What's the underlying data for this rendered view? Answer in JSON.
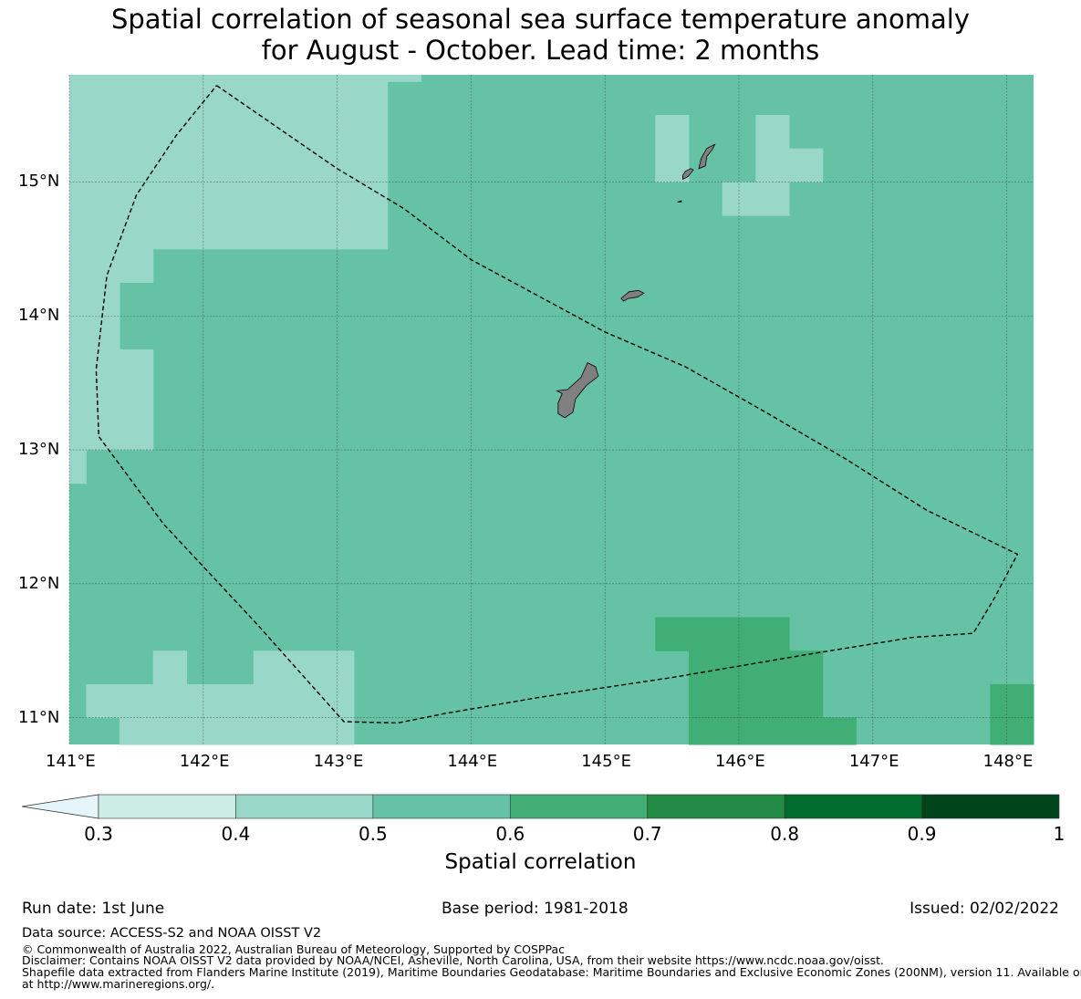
{
  "title": {
    "line1": "Spatial correlation of seasonal sea surface temperature anomaly",
    "line2": "for August - October. Lead time: 2 months"
  },
  "map": {
    "lon_range": [
      141.0,
      148.2
    ],
    "lat_range": [
      10.8,
      15.8
    ],
    "lon_ticks": [
      {
        "value": 141,
        "label": "141°E"
      },
      {
        "value": 142,
        "label": "142°E"
      },
      {
        "value": 143,
        "label": "143°E"
      },
      {
        "value": 144,
        "label": "144°E"
      },
      {
        "value": 145,
        "label": "145°E"
      },
      {
        "value": 146,
        "label": "146°E"
      },
      {
        "value": 147,
        "label": "147°E"
      },
      {
        "value": 148,
        "label": "148°E"
      }
    ],
    "lat_ticks": [
      {
        "value": 15,
        "label": "15°N"
      },
      {
        "value": 14,
        "label": "14°N"
      },
      {
        "value": 13,
        "label": "13°N"
      },
      {
        "value": 12,
        "label": "12°N"
      },
      {
        "value": 11,
        "label": "11°N"
      }
    ],
    "grid": true,
    "background_value": 0.55,
    "cells": [
      {
        "lon0": 141.0,
        "lon1": 143.375,
        "lat0": 14.5,
        "lat1": 15.8,
        "value": 0.45
      },
      {
        "lon0": 143.375,
        "lon1": 143.625,
        "lat0": 15.75,
        "lat1": 15.8,
        "value": 0.45
      },
      {
        "lon0": 141.0,
        "lon1": 141.625,
        "lat0": 14.25,
        "lat1": 14.5,
        "value": 0.45
      },
      {
        "lon0": 141.0,
        "lon1": 141.375,
        "lat0": 13.75,
        "lat1": 14.25,
        "value": 0.45
      },
      {
        "lon0": 141.0,
        "lon1": 141.625,
        "lat0": 13.0,
        "lat1": 13.75,
        "value": 0.45
      },
      {
        "lon0": 141.0,
        "lon1": 141.125,
        "lat0": 12.75,
        "lat1": 13.0,
        "value": 0.45
      },
      {
        "lon0": 145.375,
        "lon1": 145.625,
        "lat0": 15.0,
        "lat1": 15.5,
        "value": 0.45
      },
      {
        "lon0": 146.125,
        "lon1": 146.375,
        "lat0": 15.0,
        "lat1": 15.5,
        "value": 0.45
      },
      {
        "lon0": 146.375,
        "lon1": 146.625,
        "lat0": 15.0,
        "lat1": 15.25,
        "value": 0.45
      },
      {
        "lon0": 145.875,
        "lon1": 146.375,
        "lat0": 14.75,
        "lat1": 15.0,
        "value": 0.45
      },
      {
        "lon0": 141.125,
        "lon1": 141.625,
        "lat0": 11.0,
        "lat1": 11.25,
        "value": 0.45
      },
      {
        "lon0": 141.625,
        "lon1": 141.875,
        "lat0": 11.0,
        "lat1": 11.5,
        "value": 0.45
      },
      {
        "lon0": 141.875,
        "lon1": 142.375,
        "lat0": 11.0,
        "lat1": 11.25,
        "value": 0.45
      },
      {
        "lon0": 142.375,
        "lon1": 143.125,
        "lat0": 11.0,
        "lat1": 11.5,
        "value": 0.45
      },
      {
        "lon0": 141.375,
        "lon1": 143.125,
        "lat0": 10.8,
        "lat1": 11.0,
        "value": 0.45
      },
      {
        "lon0": 145.375,
        "lon1": 146.375,
        "lat0": 11.5,
        "lat1": 11.75,
        "value": 0.65
      },
      {
        "lon0": 145.625,
        "lon1": 146.625,
        "lat0": 11.0,
        "lat1": 11.5,
        "value": 0.65
      },
      {
        "lon0": 145.625,
        "lon1": 146.875,
        "lat0": 10.8,
        "lat1": 11.0,
        "value": 0.65
      },
      {
        "lon0": 147.875,
        "lon1": 148.2,
        "lat0": 10.8,
        "lat1": 11.25,
        "value": 0.65
      }
    ],
    "eez_boundary": [
      [
        142.1,
        15.72
      ],
      [
        143.0,
        15.1
      ],
      [
        143.5,
        14.8
      ],
      [
        144.0,
        14.42
      ],
      [
        144.5,
        14.15
      ],
      [
        145.0,
        13.88
      ],
      [
        145.6,
        13.62
      ],
      [
        146.2,
        13.28
      ],
      [
        146.8,
        12.93
      ],
      [
        147.4,
        12.55
      ],
      [
        148.08,
        12.22
      ],
      [
        147.9,
        11.88
      ],
      [
        147.75,
        11.63
      ],
      [
        147.3,
        11.6
      ],
      [
        146.5,
        11.47
      ],
      [
        145.5,
        11.3
      ],
      [
        144.5,
        11.15
      ],
      [
        143.8,
        11.03
      ],
      [
        143.45,
        10.96
      ],
      [
        143.05,
        10.97
      ],
      [
        142.4,
        11.7
      ],
      [
        141.7,
        12.45
      ],
      [
        141.22,
        13.1
      ],
      [
        141.2,
        13.6
      ],
      [
        141.28,
        14.3
      ],
      [
        141.5,
        14.9
      ],
      [
        141.8,
        15.35
      ],
      [
        142.1,
        15.72
      ]
    ],
    "islands": [
      {
        "name": "Guam",
        "points": [
          [
            144.64,
            13.44
          ],
          [
            144.72,
            13.45
          ],
          [
            144.82,
            13.54
          ],
          [
            144.87,
            13.65
          ],
          [
            144.93,
            13.62
          ],
          [
            144.95,
            13.55
          ],
          [
            144.86,
            13.48
          ],
          [
            144.78,
            13.38
          ],
          [
            144.76,
            13.28
          ],
          [
            144.7,
            13.24
          ],
          [
            144.65,
            13.27
          ],
          [
            144.65,
            13.35
          ],
          [
            144.68,
            13.42
          ],
          [
            144.64,
            13.44
          ]
        ]
      },
      {
        "name": "Rota",
        "points": [
          [
            145.12,
            14.13
          ],
          [
            145.18,
            14.18
          ],
          [
            145.25,
            14.19
          ],
          [
            145.29,
            14.17
          ],
          [
            145.24,
            14.14
          ],
          [
            145.17,
            14.13
          ],
          [
            145.14,
            14.11
          ],
          [
            145.12,
            14.13
          ]
        ]
      },
      {
        "name": "Tinian",
        "points": [
          [
            145.58,
            15.02
          ],
          [
            145.62,
            15.04
          ],
          [
            145.66,
            15.09
          ],
          [
            145.64,
            15.1
          ],
          [
            145.6,
            15.08
          ],
          [
            145.58,
            15.05
          ],
          [
            145.58,
            15.02
          ]
        ]
      },
      {
        "name": "Saipan",
        "points": [
          [
            145.7,
            15.1
          ],
          [
            145.72,
            15.18
          ],
          [
            145.76,
            15.25
          ],
          [
            145.82,
            15.28
          ],
          [
            145.8,
            15.24
          ],
          [
            145.76,
            15.19
          ],
          [
            145.75,
            15.12
          ],
          [
            145.7,
            15.1
          ]
        ]
      },
      {
        "name": "Aguijan",
        "points": [
          [
            145.54,
            14.85
          ],
          [
            145.57,
            14.86
          ],
          [
            145.57,
            14.85
          ],
          [
            145.54,
            14.85
          ]
        ]
      }
    ]
  },
  "colorbar": {
    "label": "Spatial correlation",
    "bins": [
      {
        "from": 0.3,
        "to": 0.4,
        "color": "#ccece6"
      },
      {
        "from": 0.4,
        "to": 0.5,
        "color": "#99d8c9"
      },
      {
        "from": 0.5,
        "to": 0.6,
        "color": "#66c2a4"
      },
      {
        "from": 0.6,
        "to": 0.7,
        "color": "#41ae76"
      },
      {
        "from": 0.7,
        "to": 0.8,
        "color": "#238b45"
      },
      {
        "from": 0.8,
        "to": 0.9,
        "color": "#006d2c"
      },
      {
        "from": 0.9,
        "to": 1.0,
        "color": "#00441b"
      }
    ],
    "extend_color": "#e5f5f9",
    "ticks": [
      "0.3",
      "0.4",
      "0.5",
      "0.6",
      "0.7",
      "0.8",
      "0.9",
      "1"
    ]
  },
  "info": {
    "run_date": "Run date: 1st June",
    "base_period": "Base period: 1981-2018",
    "issued": "Issued: 02/02/2022",
    "data_source": "Data source: ACCESS-S2 and NOAA OISST V2",
    "copyright": "© Commonwealth of Australia 2022, Australian Bureau of Meteorology, Supported by COSPPac",
    "disclaimer": "Disclaimer: Contains NOAA OISST V2 data provided by NOAA/NCEI, Asheville, North Carolina, USA, from their website https://www.ncdc.noaa.gov/oisst.",
    "shapefile_1": "Shapefile data extracted from Flanders Marine Institute (2019), Maritime Boundaries Geodatabase: Maritime Boundaries and Exclusive Economic Zones (200NM), version 11. Available online",
    "shapefile_2": "at http://www.marineregions.org/."
  },
  "colors": {
    "land": "#808080",
    "grid": "#2f4f3f",
    "boundary": "#000000"
  }
}
